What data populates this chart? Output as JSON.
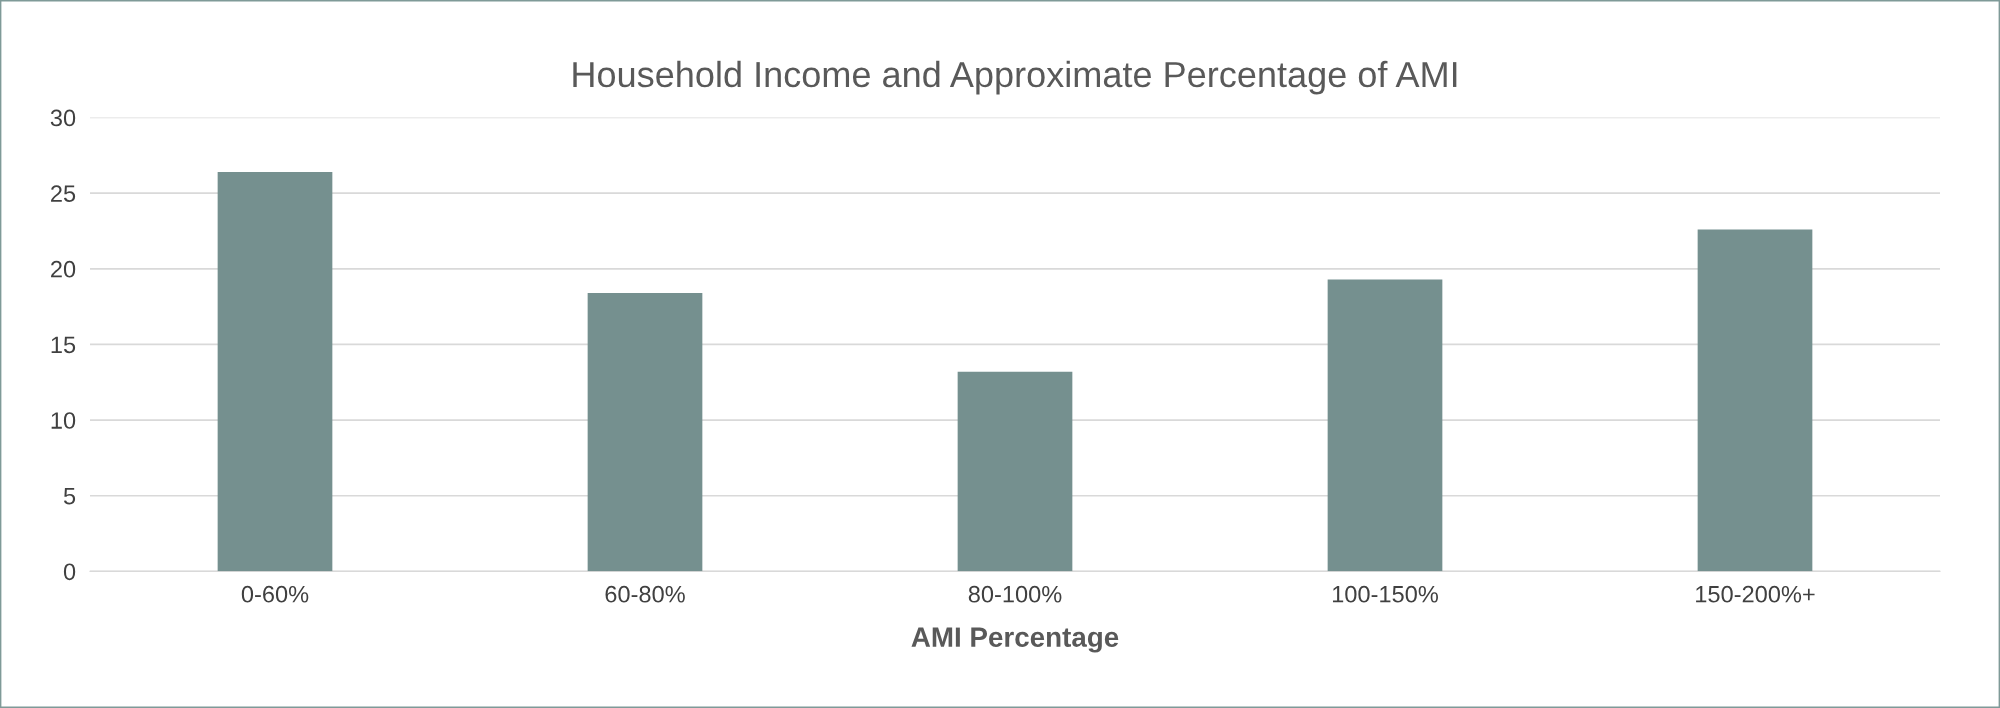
{
  "chart_data": {
    "type": "bar",
    "title": "Household Income and Approximate Percentage of AMI",
    "xlabel": "AMI Percentage",
    "categories": [
      "0-60%",
      "60-80%",
      "80-100%",
      "100-150%",
      "150-200%+"
    ],
    "values": [
      26.4,
      18.4,
      13.2,
      19.3,
      22.6
    ],
    "color": "#75908f",
    "ylim": [
      0,
      30
    ],
    "yticks": [
      0,
      5,
      10,
      15,
      20,
      25,
      30
    ],
    "grid": "y",
    "legend": false
  }
}
